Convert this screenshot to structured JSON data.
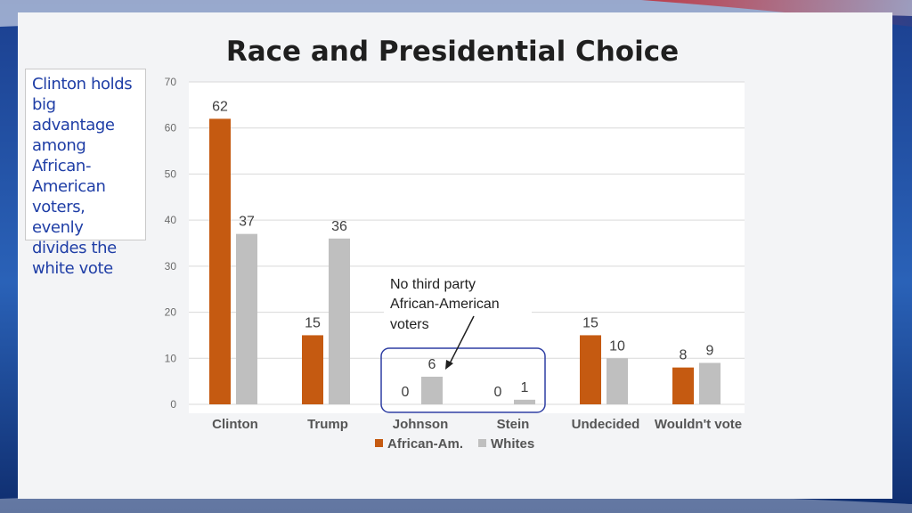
{
  "slide": {
    "title": "Race and Presidential Choice",
    "callout": "Clinton holds big advantage among African-American voters, evenly divides the white vote"
  },
  "colors": {
    "african_am": "#c55a11",
    "whites": "#bfbfbf",
    "highlight_border": "#2f3fa3",
    "gridline": "#d9d9d9"
  },
  "chart_data": {
    "type": "bar",
    "title": "Race and Presidential Choice",
    "categories": [
      "Clinton",
      "Trump",
      "Johnson",
      "Stein",
      "Undecided",
      "Wouldn't vote"
    ],
    "series": [
      {
        "name": "African-Am.",
        "values": [
          62,
          15,
          0,
          0,
          15,
          8
        ]
      },
      {
        "name": "Whites",
        "values": [
          37,
          36,
          6,
          1,
          10,
          9
        ]
      }
    ],
    "ylim": [
      0,
      70
    ],
    "yticks": [
      0,
      10,
      20,
      30,
      40,
      50,
      60,
      70
    ],
    "grid": true,
    "legend_position": "bottom",
    "annotation": {
      "text_lines": [
        "No third party",
        "African-American",
        "voters"
      ],
      "highlighted_categories": [
        "Johnson",
        "Stein"
      ]
    }
  }
}
